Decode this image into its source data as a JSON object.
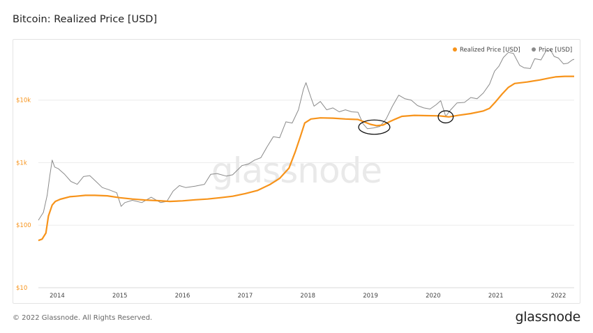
{
  "header": {
    "title": "Bitcoin: Realized Price [USD]"
  },
  "footer": {
    "copyright": "© 2022 Glassnode. All Rights Reserved.",
    "brand": "glassnode"
  },
  "watermark": "glassnode",
  "colors": {
    "realized": "#f7931a",
    "price": "#8a8a8a",
    "grid": "#ececec",
    "annotation": "#111111"
  },
  "chart_data": {
    "type": "line",
    "title": "Bitcoin: Realized Price [USD]",
    "y_scale": "log",
    "ylim": [
      10,
      50000
    ],
    "xlim": [
      2013.7,
      2022.25
    ],
    "y_ticks": [
      {
        "value": 10,
        "label": "$10"
      },
      {
        "value": 100,
        "label": "$100"
      },
      {
        "value": 1000,
        "label": "$1k"
      },
      {
        "value": 10000,
        "label": "$10k"
      }
    ],
    "x_ticks": [
      {
        "value": 2014,
        "label": "2014"
      },
      {
        "value": 2015,
        "label": "2015"
      },
      {
        "value": 2016,
        "label": "2016"
      },
      {
        "value": 2017,
        "label": "2017"
      },
      {
        "value": 2018,
        "label": "2018"
      },
      {
        "value": 2019,
        "label": "2019"
      },
      {
        "value": 2020,
        "label": "2020"
      },
      {
        "value": 2021,
        "label": "2021"
      },
      {
        "value": 2022,
        "label": "2022"
      }
    ],
    "legend": {
      "position": "top-right"
    },
    "grid": true,
    "series": [
      {
        "name": "Realized Price [USD]",
        "color": "#f7931a",
        "points": [
          [
            2013.7,
            57
          ],
          [
            2013.76,
            60
          ],
          [
            2013.82,
            75
          ],
          [
            2013.86,
            140
          ],
          [
            2013.92,
            210
          ],
          [
            2013.97,
            240
          ],
          [
            2014.05,
            260
          ],
          [
            2014.2,
            285
          ],
          [
            2014.3,
            290
          ],
          [
            2014.45,
            300
          ],
          [
            2014.6,
            300
          ],
          [
            2014.8,
            295
          ],
          [
            2015.0,
            275
          ],
          [
            2015.2,
            262
          ],
          [
            2015.4,
            253
          ],
          [
            2015.6,
            247
          ],
          [
            2015.8,
            240
          ],
          [
            2016.0,
            245
          ],
          [
            2016.2,
            255
          ],
          [
            2016.4,
            262
          ],
          [
            2016.6,
            275
          ],
          [
            2016.8,
            290
          ],
          [
            2017.0,
            320
          ],
          [
            2017.2,
            360
          ],
          [
            2017.4,
            450
          ],
          [
            2017.55,
            560
          ],
          [
            2017.7,
            820
          ],
          [
            2017.8,
            1500
          ],
          [
            2017.88,
            2600
          ],
          [
            2017.95,
            4300
          ],
          [
            2018.05,
            5000
          ],
          [
            2018.2,
            5200
          ],
          [
            2018.4,
            5150
          ],
          [
            2018.6,
            5000
          ],
          [
            2018.8,
            4900
          ],
          [
            2018.92,
            4400
          ],
          [
            2019.0,
            4100
          ],
          [
            2019.1,
            3900
          ],
          [
            2019.2,
            4000
          ],
          [
            2019.3,
            4500
          ],
          [
            2019.4,
            5000
          ],
          [
            2019.5,
            5500
          ],
          [
            2019.7,
            5700
          ],
          [
            2019.9,
            5650
          ],
          [
            2020.1,
            5600
          ],
          [
            2020.25,
            5400
          ],
          [
            2020.4,
            5700
          ],
          [
            2020.6,
            6100
          ],
          [
            2020.8,
            6700
          ],
          [
            2020.9,
            7400
          ],
          [
            2021.0,
            9500
          ],
          [
            2021.1,
            12500
          ],
          [
            2021.2,
            16000
          ],
          [
            2021.3,
            18500
          ],
          [
            2021.5,
            19500
          ],
          [
            2021.7,
            21000
          ],
          [
            2021.85,
            22500
          ],
          [
            2021.95,
            23500
          ],
          [
            2022.1,
            24000
          ],
          [
            2022.25,
            24000
          ]
        ]
      },
      {
        "name": "Price [USD]",
        "color": "#8a8a8a",
        "points": [
          [
            2013.7,
            120
          ],
          [
            2013.78,
            160
          ],
          [
            2013.84,
            300
          ],
          [
            2013.88,
            600
          ],
          [
            2013.92,
            1100
          ],
          [
            2013.96,
            850
          ],
          [
            2014.02,
            800
          ],
          [
            2014.12,
            650
          ],
          [
            2014.22,
            500
          ],
          [
            2014.32,
            450
          ],
          [
            2014.42,
            600
          ],
          [
            2014.52,
            620
          ],
          [
            2014.62,
            500
          ],
          [
            2014.72,
            400
          ],
          [
            2014.82,
            370
          ],
          [
            2014.95,
            330
          ],
          [
            2015.02,
            200
          ],
          [
            2015.08,
            230
          ],
          [
            2015.2,
            250
          ],
          [
            2015.35,
            230
          ],
          [
            2015.5,
            280
          ],
          [
            2015.65,
            230
          ],
          [
            2015.75,
            240
          ],
          [
            2015.85,
            350
          ],
          [
            2015.95,
            430
          ],
          [
            2016.05,
            400
          ],
          [
            2016.2,
            420
          ],
          [
            2016.35,
            450
          ],
          [
            2016.45,
            650
          ],
          [
            2016.55,
            670
          ],
          [
            2016.7,
            610
          ],
          [
            2016.8,
            640
          ],
          [
            2016.95,
            900
          ],
          [
            2017.05,
            950
          ],
          [
            2017.15,
            1100
          ],
          [
            2017.25,
            1200
          ],
          [
            2017.35,
            1800
          ],
          [
            2017.45,
            2600
          ],
          [
            2017.55,
            2500
          ],
          [
            2017.65,
            4500
          ],
          [
            2017.75,
            4300
          ],
          [
            2017.85,
            7000
          ],
          [
            2017.93,
            15000
          ],
          [
            2017.97,
            19000
          ],
          [
            2018.05,
            11000
          ],
          [
            2018.1,
            8000
          ],
          [
            2018.2,
            9500
          ],
          [
            2018.3,
            7000
          ],
          [
            2018.4,
            7500
          ],
          [
            2018.5,
            6500
          ],
          [
            2018.6,
            7000
          ],
          [
            2018.7,
            6500
          ],
          [
            2018.8,
            6400
          ],
          [
            2018.88,
            4200
          ],
          [
            2018.95,
            3500
          ],
          [
            2019.05,
            3600
          ],
          [
            2019.15,
            3800
          ],
          [
            2019.25,
            5000
          ],
          [
            2019.35,
            8000
          ],
          [
            2019.45,
            12000
          ],
          [
            2019.55,
            10500
          ],
          [
            2019.65,
            10000
          ],
          [
            2019.75,
            8200
          ],
          [
            2019.85,
            7500
          ],
          [
            2019.95,
            7200
          ],
          [
            2020.05,
            8500
          ],
          [
            2020.12,
            9800
          ],
          [
            2020.2,
            5500
          ],
          [
            2020.28,
            7000
          ],
          [
            2020.38,
            9000
          ],
          [
            2020.5,
            9200
          ],
          [
            2020.6,
            11000
          ],
          [
            2020.7,
            10500
          ],
          [
            2020.8,
            13000
          ],
          [
            2020.9,
            18000
          ],
          [
            2020.98,
            29000
          ],
          [
            2021.05,
            35000
          ],
          [
            2021.12,
            48000
          ],
          [
            2021.2,
            58000
          ],
          [
            2021.28,
            56000
          ],
          [
            2021.38,
            36000
          ],
          [
            2021.45,
            33000
          ],
          [
            2021.55,
            32000
          ],
          [
            2021.62,
            46000
          ],
          [
            2021.72,
            44000
          ],
          [
            2021.8,
            61000
          ],
          [
            2021.87,
            64000
          ],
          [
            2021.93,
            50000
          ],
          [
            2022.0,
            47000
          ],
          [
            2022.08,
            38000
          ],
          [
            2022.15,
            39000
          ],
          [
            2022.22,
            44000
          ],
          [
            2022.25,
            45000
          ]
        ]
      }
    ],
    "annotations": [
      {
        "shape": "ellipse",
        "cx": 2019.06,
        "cy": 3700,
        "rx_years": 0.25,
        "ry_factor": 1.3
      },
      {
        "shape": "ellipse",
        "cx": 2020.2,
        "cy": 5400,
        "rx_years": 0.12,
        "ry_factor": 1.25
      }
    ]
  }
}
